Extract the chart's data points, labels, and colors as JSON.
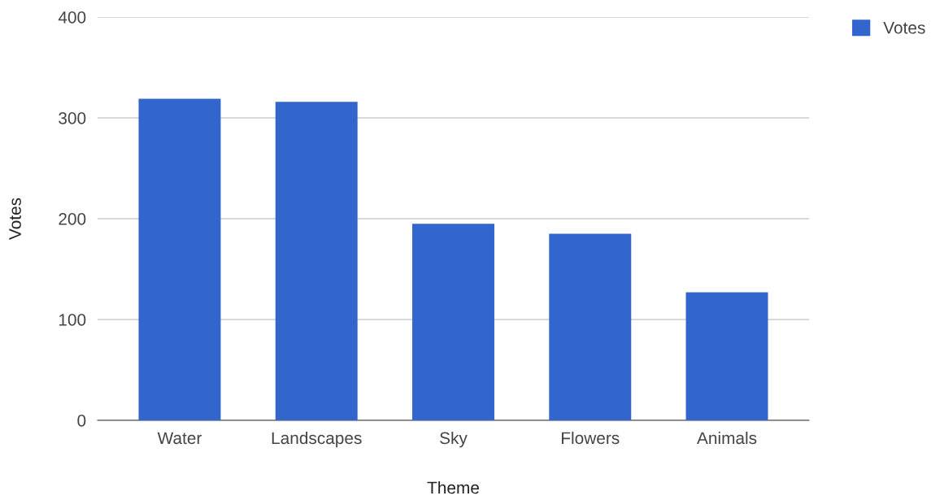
{
  "chart_data": {
    "type": "bar",
    "xlabel": "Theme",
    "ylabel": "Votes",
    "categories": [
      "Water",
      "Landscapes",
      "Sky",
      "Flowers",
      "Animals"
    ],
    "series": [
      {
        "name": "Votes",
        "color": "#3366cc",
        "values": [
          319,
          316,
          195,
          185,
          127
        ]
      }
    ],
    "ylim": [
      0,
      400
    ],
    "yticks": [
      0,
      100,
      200,
      300,
      400
    ],
    "grid": "y",
    "legend": "top right"
  }
}
